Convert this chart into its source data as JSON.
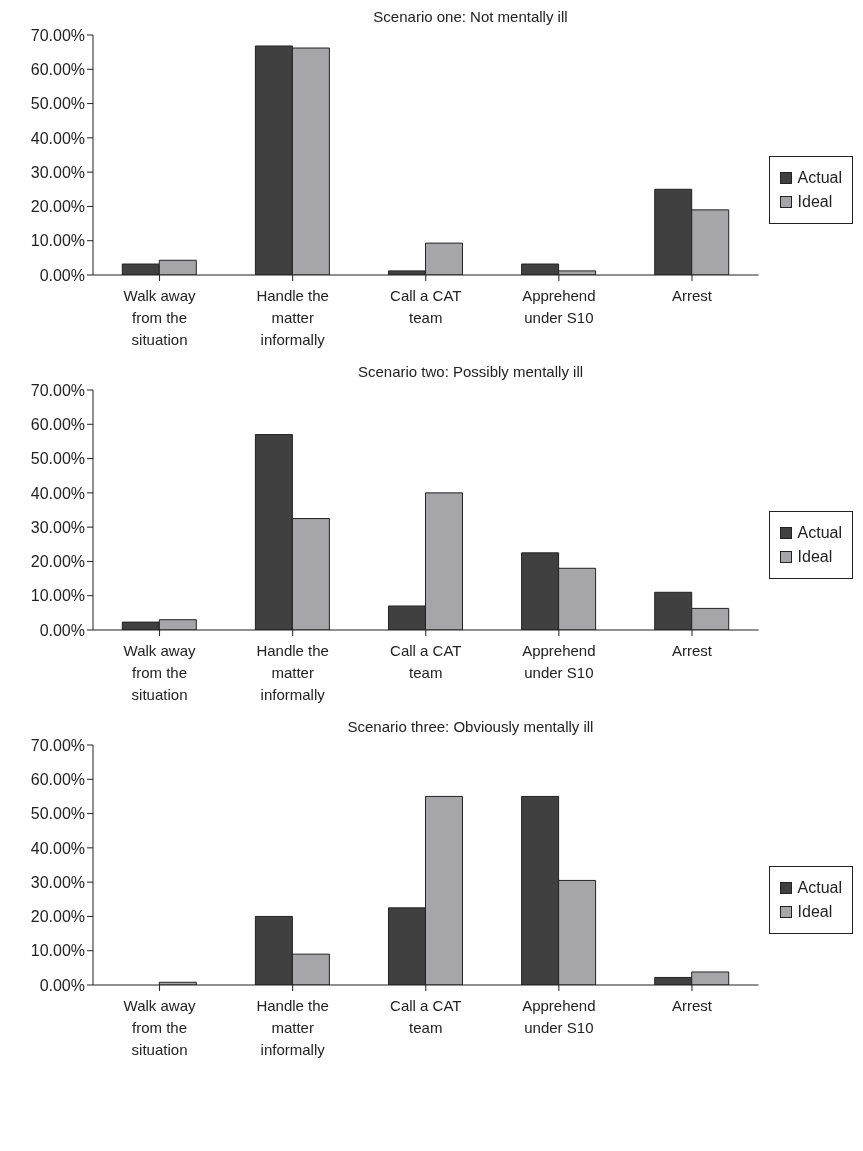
{
  "chart_data": [
    {
      "type": "bar",
      "title": "Scenario one: Not mentally ill",
      "categories": [
        "Walk away from the situation",
        "Handle the matter informally",
        "Call a CAT team",
        "Apprehend under S10",
        "Arrest"
      ],
      "series": [
        {
          "name": "Actual",
          "color": "#404040",
          "values": [
            3.2,
            66.8,
            1.2,
            3.2,
            25.0
          ]
        },
        {
          "name": "Ideal",
          "color": "#a6a6a9",
          "values": [
            4.3,
            66.2,
            9.3,
            1.2,
            19.0
          ]
        }
      ],
      "ylim": [
        0,
        70
      ],
      "yticks": [
        {
          "value": 0,
          "label": "0.00%"
        },
        {
          "value": 10,
          "label": "10.00%"
        },
        {
          "value": 20,
          "label": "20.00%"
        },
        {
          "value": 30,
          "label": "30.00%"
        },
        {
          "value": 40,
          "label": "40.00%"
        },
        {
          "value": 50,
          "label": "50.00%"
        },
        {
          "value": 60,
          "label": "60.00%"
        },
        {
          "value": 70,
          "label": "70.00%"
        }
      ],
      "grid": false,
      "legend": "right"
    },
    {
      "type": "bar",
      "title": "Scenario two: Possibly mentally ill",
      "categories": [
        "Walk away from the situation",
        "Handle the matter informally",
        "Call a CAT team",
        "Apprehend under S10",
        "Arrest"
      ],
      "series": [
        {
          "name": "Actual",
          "color": "#404040",
          "values": [
            2.3,
            57.0,
            7.0,
            22.5,
            11.0
          ]
        },
        {
          "name": "Ideal",
          "color": "#a6a6a9",
          "values": [
            3.0,
            32.5,
            40.0,
            18.0,
            6.3
          ]
        }
      ],
      "ylim": [
        0,
        70
      ],
      "yticks": [
        {
          "value": 0,
          "label": "0.00%"
        },
        {
          "value": 10,
          "label": "10.00%"
        },
        {
          "value": 20,
          "label": "20.00%"
        },
        {
          "value": 30,
          "label": "30.00%"
        },
        {
          "value": 40,
          "label": "40.00%"
        },
        {
          "value": 50,
          "label": "50.00%"
        },
        {
          "value": 60,
          "label": "60.00%"
        },
        {
          "value": 70,
          "label": "70.00%"
        }
      ],
      "grid": false,
      "legend": "right"
    },
    {
      "type": "bar",
      "title": "Scenario three: Obviously mentally ill",
      "categories": [
        "Walk away from the situation",
        "Handle the matter informally",
        "Call a CAT team",
        "Apprehend under S10",
        "Arrest"
      ],
      "series": [
        {
          "name": "Actual",
          "color": "#404040",
          "values": [
            0,
            20.0,
            22.5,
            55.0,
            2.2
          ]
        },
        {
          "name": "Ideal",
          "color": "#a6a6a9",
          "values": [
            0.8,
            9.0,
            55.0,
            30.5,
            3.8
          ]
        }
      ],
      "ylim": [
        0,
        70
      ],
      "yticks": [
        {
          "value": 0,
          "label": "0.00%"
        },
        {
          "value": 10,
          "label": "10.00%"
        },
        {
          "value": 20,
          "label": "20.00%"
        },
        {
          "value": 30,
          "label": "30.00%"
        },
        {
          "value": 40,
          "label": "40.00%"
        },
        {
          "value": 50,
          "label": "50.00%"
        },
        {
          "value": 60,
          "label": "60.00%"
        },
        {
          "value": 70,
          "label": "70.00%"
        }
      ],
      "grid": false,
      "legend": "right"
    }
  ]
}
